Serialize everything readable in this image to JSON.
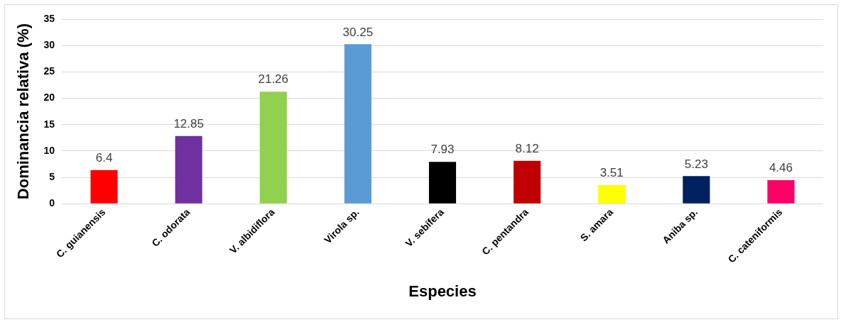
{
  "chart_data": {
    "type": "bar",
    "xlabel": "Especies",
    "ylabel": "Dominancia relativa (%)",
    "categories": [
      "C. guianensis",
      "C. odorata",
      "V. albidiflora",
      "Virola sp.",
      "V. sebífera",
      "C. pentandra",
      "S. amara",
      "Aniba sp.",
      "C. cateniformis"
    ],
    "values": [
      6.4,
      12.85,
      21.26,
      30.25,
      7.93,
      8.12,
      3.51,
      5.23,
      4.46
    ],
    "colors": [
      "#ff0000",
      "#7030a0",
      "#92d050",
      "#5b9bd5",
      "#000000",
      "#c00000",
      "#ffff00",
      "#002060",
      "#ff0066"
    ],
    "ylim": [
      0,
      35
    ],
    "yticks": [
      0,
      5,
      10,
      15,
      20,
      25,
      30,
      35
    ],
    "grid": "y",
    "data_labels": true,
    "legend": false
  }
}
